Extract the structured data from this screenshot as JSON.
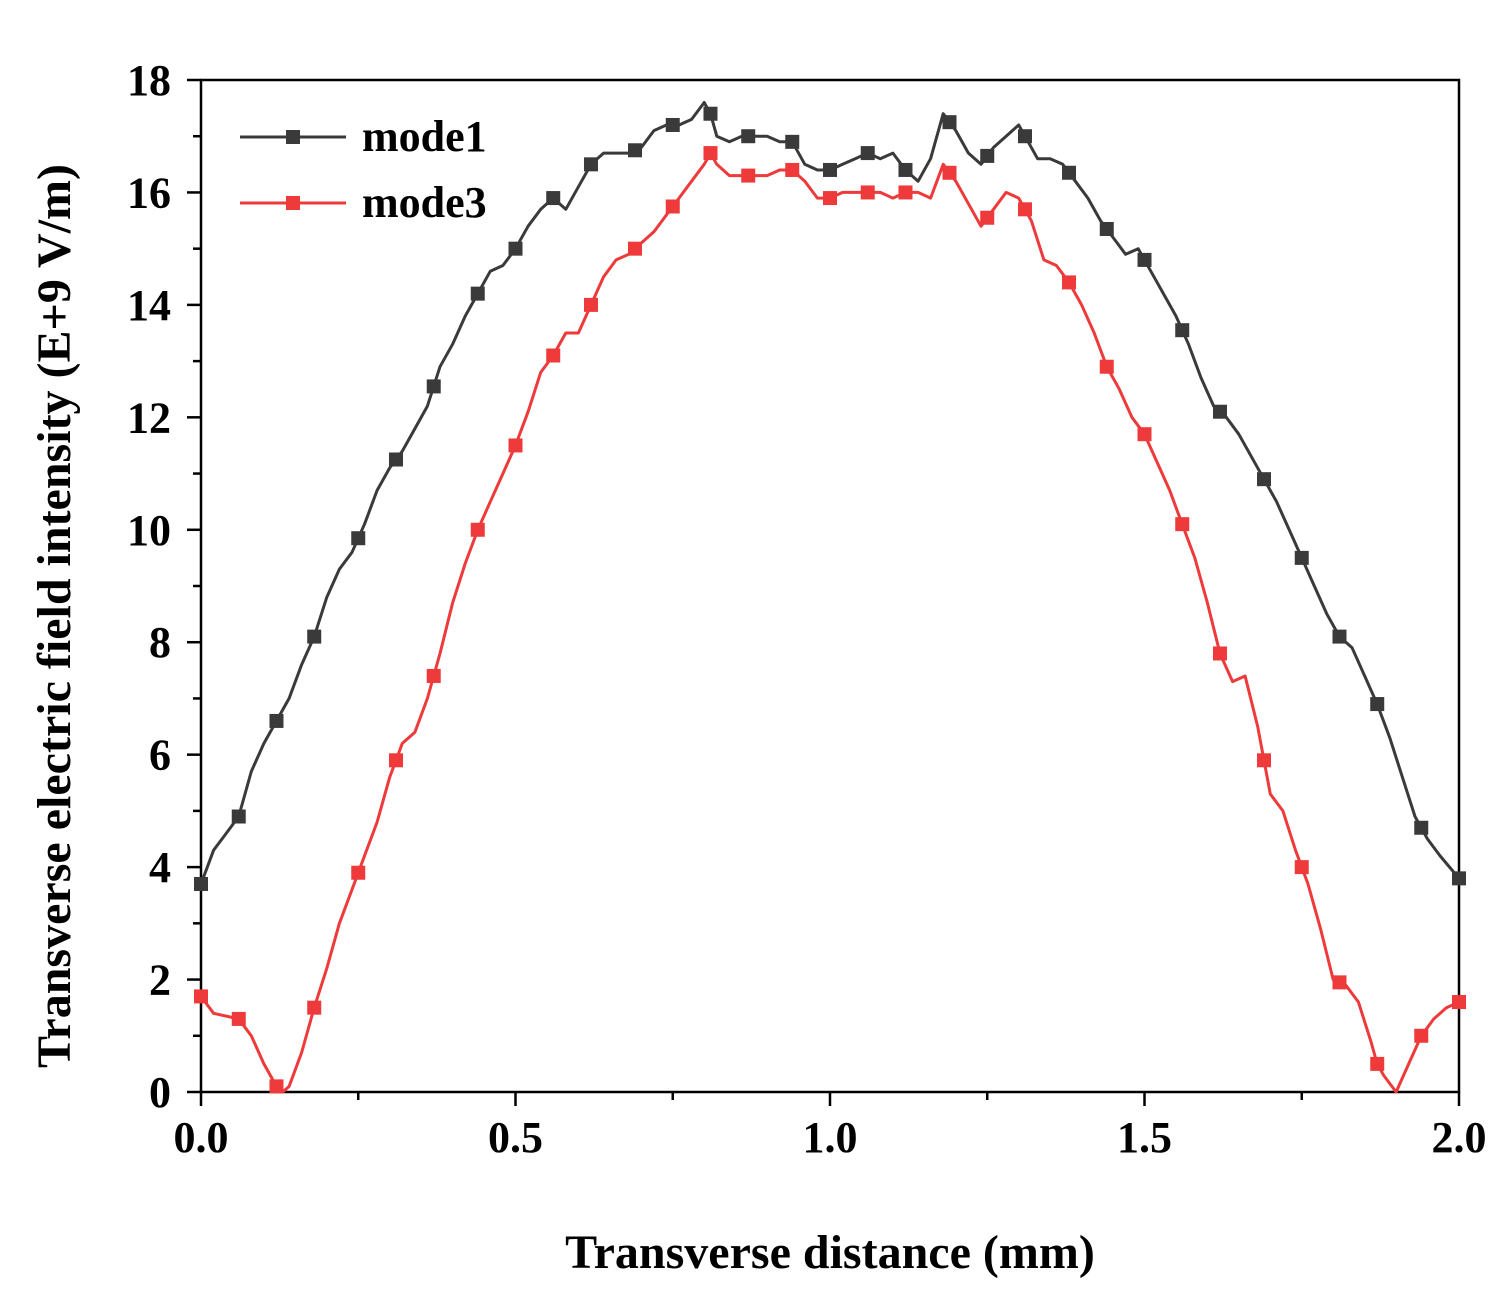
{
  "chart_data": {
    "type": "line",
    "title": "",
    "xlabel": "Transverse distance (mm)",
    "ylabel": "Transverse electric field intensity (E+9 V/m)",
    "xlim": [
      0.0,
      2.0
    ],
    "ylim": [
      0,
      18
    ],
    "x_ticks": [
      "0.0",
      "0.5",
      "1.0",
      "1.5",
      "2.0"
    ],
    "y_ticks": [
      "0",
      "2",
      "4",
      "6",
      "8",
      "10",
      "12",
      "14",
      "16",
      "18"
    ],
    "grid": false,
    "legend_position": "top-left",
    "marker": "square",
    "series": [
      {
        "name": "mode1",
        "color": "#3a3a3a",
        "x": [
          0.0,
          0.02,
          0.04,
          0.06,
          0.08,
          0.1,
          0.12,
          0.14,
          0.16,
          0.18,
          0.2,
          0.22,
          0.24,
          0.26,
          0.28,
          0.3,
          0.32,
          0.34,
          0.36,
          0.38,
          0.4,
          0.42,
          0.44,
          0.46,
          0.48,
          0.5,
          0.52,
          0.54,
          0.56,
          0.58,
          0.6,
          0.62,
          0.64,
          0.66,
          0.68,
          0.7,
          0.72,
          0.74,
          0.76,
          0.78,
          0.8,
          0.81,
          0.82,
          0.84,
          0.86,
          0.88,
          0.9,
          0.92,
          0.94,
          0.96,
          0.98,
          1.0,
          1.02,
          1.04,
          1.06,
          1.08,
          1.1,
          1.12,
          1.14,
          1.16,
          1.18,
          1.2,
          1.22,
          1.24,
          1.26,
          1.28,
          1.3,
          1.31,
          1.33,
          1.35,
          1.37,
          1.39,
          1.41,
          1.43,
          1.45,
          1.47,
          1.49,
          1.51,
          1.53,
          1.55,
          1.57,
          1.59,
          1.61,
          1.63,
          1.65,
          1.67,
          1.69,
          1.71,
          1.73,
          1.75,
          1.77,
          1.79,
          1.81,
          1.83,
          1.85,
          1.87,
          1.89,
          1.91,
          1.93,
          1.95,
          1.97,
          2.0
        ],
        "y": [
          3.7,
          4.3,
          4.6,
          4.9,
          5.7,
          6.2,
          6.6,
          7.0,
          7.6,
          8.1,
          8.8,
          9.3,
          9.6,
          10.1,
          10.7,
          11.1,
          11.4,
          11.8,
          12.2,
          12.9,
          13.3,
          13.8,
          14.2,
          14.6,
          14.7,
          15.0,
          15.4,
          15.7,
          15.9,
          15.7,
          16.1,
          16.5,
          16.7,
          16.7,
          16.7,
          16.8,
          17.1,
          17.2,
          17.2,
          17.3,
          17.6,
          17.4,
          17.0,
          16.9,
          17.0,
          17.0,
          17.0,
          16.9,
          16.9,
          16.5,
          16.4,
          16.4,
          16.5,
          16.6,
          16.7,
          16.6,
          16.7,
          16.4,
          16.2,
          16.6,
          17.4,
          17.1,
          16.7,
          16.5,
          16.8,
          17.0,
          17.2,
          17.0,
          16.6,
          16.6,
          16.5,
          16.2,
          15.9,
          15.5,
          15.2,
          14.9,
          15.0,
          14.6,
          14.2,
          13.8,
          13.3,
          12.7,
          12.2,
          12.0,
          11.7,
          11.3,
          10.9,
          10.5,
          10.0,
          9.5,
          9.0,
          8.5,
          8.1,
          7.9,
          7.4,
          6.9,
          6.3,
          5.6,
          4.9,
          4.5,
          4.2,
          3.8
        ],
        "marker_x": [
          0.0,
          0.06,
          0.12,
          0.18,
          0.25,
          0.31,
          0.37,
          0.44,
          0.5,
          0.56,
          0.62,
          0.69,
          0.75,
          0.81,
          0.87,
          0.94,
          1.0,
          1.06,
          1.12,
          1.19,
          1.25,
          1.31,
          1.38,
          1.44,
          1.5,
          1.56,
          1.62,
          1.69,
          1.75,
          1.81,
          1.87,
          1.94,
          2.0
        ]
      },
      {
        "name": "mode3",
        "color": "#ee3a3a",
        "x": [
          0.0,
          0.02,
          0.04,
          0.06,
          0.08,
          0.1,
          0.12,
          0.13,
          0.14,
          0.16,
          0.18,
          0.2,
          0.22,
          0.24,
          0.26,
          0.28,
          0.3,
          0.32,
          0.34,
          0.36,
          0.38,
          0.4,
          0.42,
          0.44,
          0.46,
          0.48,
          0.5,
          0.52,
          0.54,
          0.56,
          0.58,
          0.6,
          0.62,
          0.64,
          0.66,
          0.68,
          0.7,
          0.72,
          0.74,
          0.76,
          0.78,
          0.8,
          0.81,
          0.82,
          0.84,
          0.86,
          0.88,
          0.9,
          0.92,
          0.94,
          0.96,
          0.98,
          1.0,
          1.02,
          1.04,
          1.06,
          1.08,
          1.1,
          1.12,
          1.14,
          1.16,
          1.18,
          1.2,
          1.22,
          1.24,
          1.26,
          1.28,
          1.3,
          1.32,
          1.34,
          1.36,
          1.38,
          1.4,
          1.42,
          1.44,
          1.46,
          1.48,
          1.5,
          1.52,
          1.54,
          1.56,
          1.58,
          1.6,
          1.62,
          1.64,
          1.66,
          1.68,
          1.7,
          1.72,
          1.74,
          1.76,
          1.78,
          1.8,
          1.82,
          1.84,
          1.86,
          1.87,
          1.88,
          1.9,
          1.92,
          1.94,
          1.96,
          1.98,
          2.0
        ],
        "y": [
          1.7,
          1.4,
          1.35,
          1.3,
          1.0,
          0.5,
          0.1,
          0.0,
          0.1,
          0.7,
          1.5,
          2.2,
          3.0,
          3.6,
          4.2,
          4.8,
          5.6,
          6.2,
          6.4,
          7.0,
          7.8,
          8.7,
          9.4,
          10.0,
          10.5,
          11.0,
          11.5,
          12.1,
          12.8,
          13.1,
          13.5,
          13.5,
          14.0,
          14.5,
          14.8,
          14.9,
          15.1,
          15.3,
          15.6,
          15.9,
          16.2,
          16.5,
          16.7,
          16.5,
          16.3,
          16.3,
          16.3,
          16.3,
          16.4,
          16.4,
          16.2,
          15.9,
          15.9,
          16.0,
          16.0,
          16.0,
          16.0,
          15.9,
          16.0,
          16.0,
          15.9,
          16.5,
          16.2,
          15.8,
          15.4,
          15.7,
          16.0,
          15.9,
          15.5,
          14.8,
          14.7,
          14.4,
          14.0,
          13.5,
          12.9,
          12.5,
          12.0,
          11.7,
          11.2,
          10.7,
          10.1,
          9.5,
          8.7,
          7.8,
          7.3,
          7.4,
          6.5,
          5.3,
          5.0,
          4.3,
          3.7,
          2.9,
          2.0,
          1.9,
          1.6,
          0.9,
          0.5,
          0.3,
          0.0,
          0.5,
          1.0,
          1.3,
          1.5,
          1.6
        ],
        "marker_x": [
          0.0,
          0.06,
          0.12,
          0.18,
          0.25,
          0.31,
          0.37,
          0.44,
          0.5,
          0.56,
          0.62,
          0.69,
          0.75,
          0.81,
          0.87,
          0.94,
          1.0,
          1.06,
          1.12,
          1.19,
          1.25,
          1.31,
          1.38,
          1.44,
          1.5,
          1.56,
          1.62,
          1.69,
          1.75,
          1.81,
          1.87,
          1.94,
          2.0
        ]
      }
    ]
  }
}
